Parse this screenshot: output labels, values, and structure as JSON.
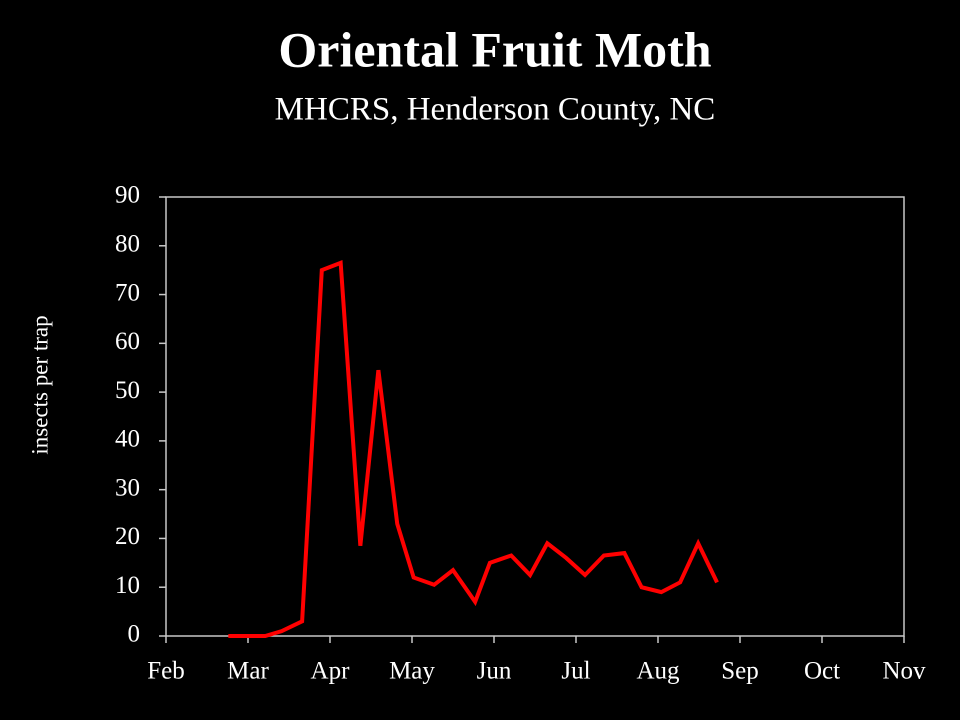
{
  "chart_data": {
    "type": "line",
    "title": "Oriental Fruit Moth",
    "subtitle": "MHCRS, Henderson County, NC",
    "y_label": "insects per trap",
    "x": [
      0.76,
      0.99,
      1.21,
      1.41,
      1.66,
      1.9,
      2.13,
      2.37,
      2.59,
      2.82,
      3.02,
      3.27,
      3.5,
      3.77,
      3.95,
      4.21,
      4.44,
      4.65,
      4.88,
      5.11,
      5.34,
      5.59,
      5.8,
      6.04,
      6.27,
      6.49,
      6.72
    ],
    "series": [
      {
        "name": "insects per trap",
        "color": "#ff0000",
        "values": [
          0,
          0,
          0,
          1,
          3,
          75,
          76.5,
          18.5,
          54.5,
          23,
          12,
          10.5,
          13.5,
          7,
          15,
          16.5,
          12.5,
          19,
          16,
          12.5,
          16.5,
          17,
          10,
          9,
          11,
          19,
          11
        ]
      }
    ],
    "xlim": [
      0,
      9
    ],
    "xticks": [
      {
        "value": 0,
        "label": "Feb"
      },
      {
        "value": 1,
        "label": "Mar"
      },
      {
        "value": 2,
        "label": "Apr"
      },
      {
        "value": 3,
        "label": "May"
      },
      {
        "value": 4,
        "label": "Jun"
      },
      {
        "value": 5,
        "label": "Jul"
      },
      {
        "value": 6,
        "label": "Aug"
      },
      {
        "value": 7,
        "label": "Sep"
      },
      {
        "value": 8,
        "label": "Oct"
      },
      {
        "value": 9,
        "label": "Nov"
      }
    ],
    "ylim": [
      0,
      90
    ],
    "yticks": [
      0,
      10,
      20,
      30,
      40,
      50,
      60,
      70,
      80,
      90
    ]
  }
}
